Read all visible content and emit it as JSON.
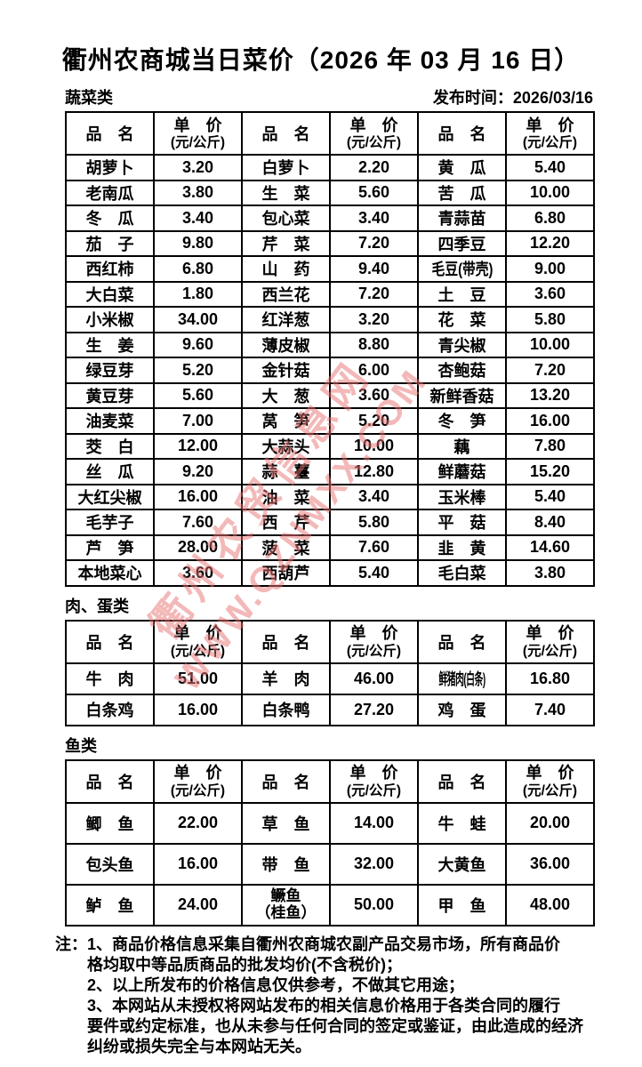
{
  "title": "衢州农商城当日菜价（2026 年 03 月 16 日）",
  "publish_time": "发布时间：2026/03/16",
  "header": {
    "name": "品　名",
    "price_line1": "单　价",
    "price_line2": "(元/公斤)"
  },
  "sections": [
    {
      "label": "蔬菜类",
      "rows": [
        [
          {
            "n": "胡萝卜",
            "p": "3.20"
          },
          {
            "n": "白萝卜",
            "p": "2.20"
          },
          {
            "n": "黄　瓜",
            "p": "5.40"
          }
        ],
        [
          {
            "n": "老南瓜",
            "p": "3.80"
          },
          {
            "n": "生　菜",
            "p": "5.60"
          },
          {
            "n": "苦　瓜",
            "p": "10.00"
          }
        ],
        [
          {
            "n": "冬　瓜",
            "p": "3.40"
          },
          {
            "n": "包心菜",
            "p": "3.40"
          },
          {
            "n": "青蒜苗",
            "p": "6.80"
          }
        ],
        [
          {
            "n": "茄　子",
            "p": "9.80"
          },
          {
            "n": "芹　菜",
            "p": "7.20"
          },
          {
            "n": "四季豆",
            "p": "12.20"
          }
        ],
        [
          {
            "n": "西红柿",
            "p": "6.80"
          },
          {
            "n": "山　药",
            "p": "9.40"
          },
          {
            "n": "毛豆(带壳)",
            "p": "9.00"
          }
        ],
        [
          {
            "n": "大白菜",
            "p": "1.80"
          },
          {
            "n": "西兰花",
            "p": "7.20"
          },
          {
            "n": "土　豆",
            "p": "3.60"
          }
        ],
        [
          {
            "n": "小米椒",
            "p": "34.00"
          },
          {
            "n": "红洋葱",
            "p": "3.20"
          },
          {
            "n": "花　菜",
            "p": "5.80"
          }
        ],
        [
          {
            "n": "生　姜",
            "p": "9.60"
          },
          {
            "n": "薄皮椒",
            "p": "8.80"
          },
          {
            "n": "青尖椒",
            "p": "10.00"
          }
        ],
        [
          {
            "n": "绿豆芽",
            "p": "5.20"
          },
          {
            "n": "金针菇",
            "p": "6.00"
          },
          {
            "n": "杏鲍菇",
            "p": "7.20"
          }
        ],
        [
          {
            "n": "黄豆芽",
            "p": "5.60"
          },
          {
            "n": "大　葱",
            "p": "3.60"
          },
          {
            "n": "新鲜香菇",
            "p": "13.20"
          }
        ],
        [
          {
            "n": "油麦菜",
            "p": "7.00"
          },
          {
            "n": "莴　笋",
            "p": "5.20"
          },
          {
            "n": "冬　笋",
            "p": "16.00"
          }
        ],
        [
          {
            "n": "茭　白",
            "p": "12.00"
          },
          {
            "n": "大蒜头",
            "p": "10.00"
          },
          {
            "n": "藕",
            "p": "7.80"
          }
        ],
        [
          {
            "n": "丝　瓜",
            "p": "9.20"
          },
          {
            "n": "蒜　薹",
            "p": "12.80"
          },
          {
            "n": "鲜蘑菇",
            "p": "15.20"
          }
        ],
        [
          {
            "n": "大红尖椒",
            "p": "16.00"
          },
          {
            "n": "油　菜",
            "p": "3.40"
          },
          {
            "n": "玉米棒",
            "p": "5.40"
          }
        ],
        [
          {
            "n": "毛芋子",
            "p": "7.60"
          },
          {
            "n": "西　芹",
            "p": "5.80"
          },
          {
            "n": "平　菇",
            "p": "8.40"
          }
        ],
        [
          {
            "n": "芦　笋",
            "p": "28.00"
          },
          {
            "n": "菠　菜",
            "p": "7.60"
          },
          {
            "n": "韭　黄",
            "p": "14.60"
          }
        ],
        [
          {
            "n": "本地菜心",
            "p": "3.60"
          },
          {
            "n": "西葫芦",
            "p": "5.40"
          },
          {
            "n": "毛白菜",
            "p": "3.80"
          }
        ]
      ]
    },
    {
      "label": "肉、蛋类",
      "rows": [
        [
          {
            "n": "牛　肉",
            "p": "51.00"
          },
          {
            "n": "羊　肉",
            "p": "46.00"
          },
          {
            "n": "鲜猪肉(白条)",
            "p": "16.80"
          }
        ],
        [
          {
            "n": "白条鸡",
            "p": "16.00"
          },
          {
            "n": "白条鸭",
            "p": "27.20"
          },
          {
            "n": "鸡　蛋",
            "p": "7.40"
          }
        ]
      ]
    },
    {
      "label": "鱼类",
      "rows": [
        [
          {
            "n": "鲫　鱼",
            "p": "22.00"
          },
          {
            "n": "草　鱼",
            "p": "14.00"
          },
          {
            "n": "牛　蛙",
            "p": "20.00"
          }
        ],
        [
          {
            "n": "包头鱼",
            "p": "16.00"
          },
          {
            "n": "带　鱼",
            "p": "32.00"
          },
          {
            "n": "大黄鱼",
            "p": "36.00"
          }
        ],
        [
          {
            "n": "鲈　鱼",
            "p": "24.00"
          },
          {
            "n": "鳜鱼\n（桂鱼）",
            "p": "50.00"
          },
          {
            "n": "甲　鱼",
            "p": "48.00"
          }
        ]
      ]
    }
  ],
  "notes": {
    "prefix": "注：",
    "lines": [
      "1、商品价格信息采集自衢州农商城农副产品交易市场，所有商品价",
      "格均取中等品质商品的批发均价(不含税价)；",
      "2、以上所发布的价格信息仅供参考，不做其它用途；",
      "3、本网站从未授权将网站发布的相关信息价格用于各类合同的履行",
      "要件或约定标准，也从未参与任何合同的签定或鉴证，由此造成的经济",
      "纠纷或损失完全与本网站无关。"
    ]
  },
  "watermark": {
    "line1": "衢州农贸信息网",
    "line2": "WWW.QZNMXX.COM",
    "color": "#e97373"
  }
}
